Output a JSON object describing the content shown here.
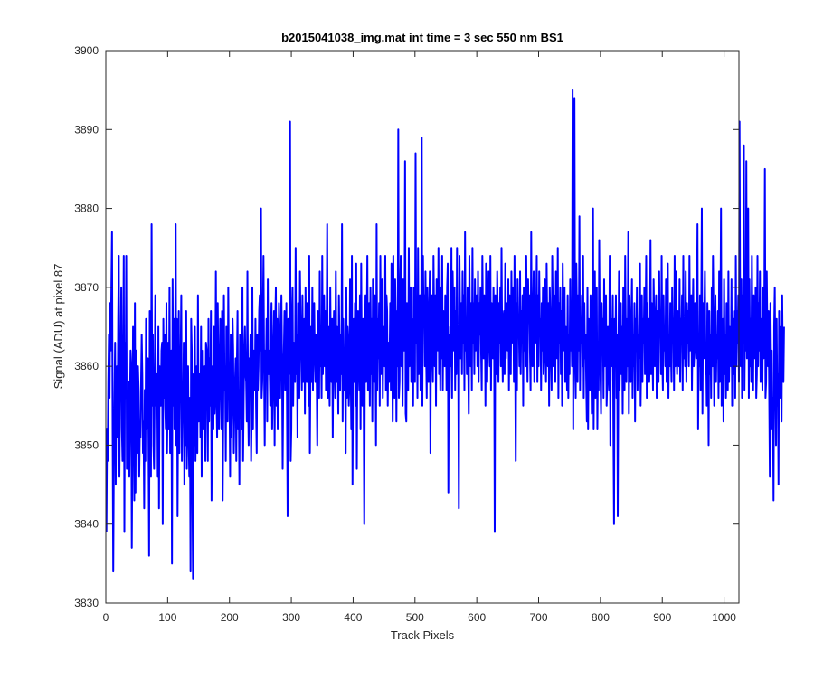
{
  "chart_data": {
    "type": "line",
    "title": "b2015041038_img.mat int time = 3 sec  550 nm BS1",
    "xlabel": "Track Pixels",
    "ylabel": "Signal (ADU) at pixel 87",
    "xlim": [
      0,
      1024
    ],
    "ylim": [
      3830,
      3900
    ],
    "xticks": [
      0,
      100,
      200,
      300,
      400,
      500,
      600,
      700,
      800,
      900,
      1000
    ],
    "yticks": [
      3830,
      3840,
      3850,
      3860,
      3870,
      3880,
      3890,
      3900
    ],
    "grid": false,
    "legend": "none",
    "series_color": "#0000ff",
    "series": [
      {
        "x_start": 1,
        "x_step": 1,
        "values": [
          3839,
          3852,
          3848,
          3858,
          3864,
          3856,
          3868,
          3862,
          3870,
          3877,
          3852,
          3834,
          3849,
          3856,
          3863,
          3845,
          3858,
          3860,
          3851,
          3866,
          3874,
          3846,
          3857,
          3862,
          3870,
          3852,
          3848,
          3860,
          3874,
          3839,
          3863,
          3857,
          3874,
          3847,
          3856,
          3852,
          3858,
          3846,
          3855,
          3862,
          3860,
          3837,
          3851,
          3865,
          3856,
          3843,
          3868,
          3844,
          3862,
          3855,
          3849,
          3860,
          3857,
          3846,
          3852,
          3851,
          3858,
          3864,
          3859,
          3849,
          3853,
          3842,
          3857,
          3848,
          3866,
          3852,
          3855,
          3861,
          3851,
          3836,
          3867,
          3859,
          3846,
          3878,
          3855,
          3864,
          3850,
          3847,
          3857,
          3869,
          3855,
          3858,
          3859,
          3846,
          3865,
          3842,
          3860,
          3858,
          3855,
          3862,
          3863,
          3840,
          3866,
          3856,
          3864,
          3855,
          3852,
          3868,
          3849,
          3856,
          3863,
          3852,
          3870,
          3849,
          3859,
          3862,
          3835,
          3871,
          3855,
          3866,
          3852,
          3859,
          3878,
          3850,
          3866,
          3841,
          3856,
          3867,
          3849,
          3858,
          3861,
          3869,
          3848,
          3856,
          3854,
          3863,
          3845,
          3857,
          3850,
          3867,
          3847,
          3855,
          3860,
          3851,
          3846,
          3856,
          3834,
          3866,
          3862,
          3845,
          3833,
          3859,
          3850,
          3865,
          3848,
          3855,
          3860,
          3849,
          3869,
          3853,
          3857,
          3859,
          3851,
          3865,
          3846,
          3858,
          3862,
          3852,
          3857,
          3860,
          3848,
          3863,
          3862,
          3858,
          3848,
          3866,
          3853,
          3861,
          3855,
          3867,
          3843,
          3858,
          3860,
          3852,
          3865,
          3854,
          3857,
          3872,
          3856,
          3851,
          3868,
          3860,
          3852,
          3858,
          3866,
          3861,
          3852,
          3867,
          3843,
          3855,
          3869,
          3857,
          3860,
          3848,
          3865,
          3862,
          3853,
          3870,
          3859,
          3857,
          3846,
          3864,
          3851,
          3855,
          3866,
          3862,
          3849,
          3855,
          3858,
          3861,
          3848,
          3860,
          3867,
          3852,
          3857,
          3845,
          3864,
          3860,
          3854,
          3852,
          3870,
          3848,
          3856,
          3862,
          3865,
          3859,
          3858,
          3853,
          3872,
          3856,
          3850,
          3861,
          3858,
          3864,
          3848,
          3855,
          3870,
          3852,
          3862,
          3859,
          3857,
          3866,
          3855,
          3849,
          3864,
          3857,
          3860,
          3867,
          3869,
          3862,
          3880,
          3856,
          3858,
          3866,
          3874,
          3860,
          3850,
          3862,
          3859,
          3866,
          3853,
          3871,
          3859,
          3862,
          3860,
          3855,
          3864,
          3868,
          3852,
          3857,
          3863,
          3867,
          3850,
          3865,
          3870,
          3855,
          3866,
          3852,
          3857,
          3868,
          3860,
          3856,
          3864,
          3869,
          3861,
          3847,
          3858,
          3862,
          3867,
          3857,
          3860,
          3868,
          3855,
          3841,
          3866,
          3859,
          3861,
          3891,
          3848,
          3852,
          3866,
          3870,
          3855,
          3863,
          3862,
          3858,
          3875,
          3859,
          3864,
          3851,
          3868,
          3860,
          3856,
          3872,
          3865,
          3862,
          3857,
          3869,
          3858,
          3861,
          3866,
          3854,
          3870,
          3862,
          3858,
          3868,
          3861,
          3855,
          3874,
          3849,
          3860,
          3865,
          3858,
          3870,
          3857,
          3866,
          3868,
          3861,
          3858,
          3864,
          3859,
          3850,
          3867,
          3862,
          3856,
          3872,
          3860,
          3865,
          3856,
          3874,
          3859,
          3863,
          3869,
          3860,
          3867,
          3857,
          3862,
          3878,
          3856,
          3865,
          3860,
          3855,
          3870,
          3861,
          3858,
          3866,
          3851,
          3863,
          3867,
          3860,
          3856,
          3872,
          3858,
          3865,
          3861,
          3854,
          3869,
          3862,
          3857,
          3864,
          3859,
          3878,
          3853,
          3866,
          3861,
          3857,
          3860,
          3849,
          3870,
          3856,
          3865,
          3863,
          3855,
          3858,
          3871,
          3860,
          3852,
          3874,
          3845,
          3861,
          3866,
          3858,
          3868,
          3855,
          3873,
          3847,
          3862,
          3867,
          3860,
          3857,
          3869,
          3852,
          3873,
          3861,
          3855,
          3866,
          3857,
          3840,
          3861,
          3869,
          3858,
          3864,
          3874,
          3857,
          3862,
          3868,
          3855,
          3870,
          3859,
          3866,
          3853,
          3871,
          3860,
          3858,
          3869,
          3864,
          3850,
          3878,
          3857,
          3866,
          3861,
          3868,
          3855,
          3874,
          3859,
          3863,
          3871,
          3856,
          3865,
          3862,
          3860,
          3874,
          3857,
          3869,
          3867,
          3855,
          3863,
          3858,
          3861,
          3868,
          3857,
          3873,
          3864,
          3853,
          3874,
          3860,
          3856,
          3871,
          3865,
          3853,
          3867,
          3860,
          3890,
          3856,
          3858,
          3869,
          3874,
          3860,
          3865,
          3855,
          3871,
          3862,
          3862,
          3886,
          3854,
          3853,
          3868,
          3862,
          3857,
          3875,
          3860,
          3864,
          3870,
          3858,
          3866,
          3860,
          3855,
          3870,
          3864,
          3858,
          3887,
          3863,
          3868,
          3856,
          3875,
          3859,
          3865,
          3869,
          3857,
          3862,
          3889,
          3855,
          3874,
          3865,
          3869,
          3860,
          3872,
          3862,
          3856,
          3870,
          3864,
          3858,
          3867,
          3872,
          3849,
          3866,
          3869,
          3862,
          3858,
          3874,
          3866,
          3860,
          3869,
          3855,
          3871,
          3863,
          3862,
          3875,
          3859,
          3866,
          3857,
          3870,
          3861,
          3874,
          3857,
          3867,
          3863,
          3860,
          3869,
          3866,
          3857,
          3870,
          3873,
          3844,
          3864,
          3856,
          3865,
          3860,
          3875,
          3856,
          3872,
          3866,
          3862,
          3870,
          3857,
          3867,
          3859,
          3875,
          3863,
          3860,
          3842,
          3874,
          3866,
          3861,
          3868,
          3859,
          3872,
          3863,
          3869,
          3857,
          3877,
          3862,
          3866,
          3859,
          3870,
          3861,
          3854,
          3874,
          3865,
          3860,
          3868,
          3857,
          3875,
          3863,
          3868,
          3859,
          3871,
          3862,
          3866,
          3869,
          3860,
          3872,
          3858,
          3868,
          3864,
          3870,
          3862,
          3857,
          3874,
          3866,
          3861,
          3869,
          3868,
          3855,
          3873,
          3860,
          3858,
          3866,
          3872,
          3863,
          3860,
          3874,
          3857,
          3868,
          3866,
          3861,
          3870,
          3865,
          3839,
          3869,
          3862,
          3859,
          3872,
          3866,
          3858,
          3868,
          3863,
          3870,
          3860,
          3875,
          3864,
          3858,
          3866,
          3867,
          3859,
          3873,
          3861,
          3868,
          3866,
          3862,
          3871,
          3857,
          3869,
          3865,
          3859,
          3872,
          3863,
          3866,
          3870,
          3858,
          3874,
          3862,
          3848,
          3868,
          3857,
          3871,
          3864,
          3866,
          3860,
          3872,
          3859,
          3867,
          3863,
          3869,
          3855,
          3870,
          3862,
          3866,
          3860,
          3874,
          3865,
          3858,
          3871,
          3866,
          3869,
          3862,
          3857,
          3877,
          3862,
          3860,
          3867,
          3872,
          3858,
          3869,
          3863,
          3866,
          3874,
          3858,
          3869,
          3860,
          3872,
          3864,
          3866,
          3857,
          3868,
          3862,
          3870,
          3859,
          3865,
          3871,
          3861,
          3858,
          3873,
          3865,
          3860,
          3868,
          3855,
          3870,
          3866,
          3861,
          3857,
          3874,
          3867,
          3860,
          3869,
          3865,
          3858,
          3872,
          3864,
          3861,
          3875,
          3856,
          3868,
          3863,
          3870,
          3859,
          3867,
          3855,
          3873,
          3862,
          3866,
          3870,
          3858,
          3865,
          3862,
          3857,
          3869,
          3856,
          3864,
          3859,
          3871,
          3862,
          3866,
          3860,
          3895,
          3852,
          3880,
          3894,
          3860,
          3856,
          3873,
          3866,
          3858,
          3869,
          3862,
          3879,
          3857,
          3866,
          3863,
          3869,
          3860,
          3874,
          3856,
          3868,
          3861,
          3864,
          3858,
          3853,
          3870,
          3852,
          3866,
          3860,
          3857,
          3869,
          3861,
          3854,
          3867,
          3880,
          3852,
          3864,
          3872,
          3856,
          3859,
          3870,
          3852,
          3861,
          3857,
          3876,
          3864,
          3859,
          3854,
          3868,
          3862,
          3866,
          3856,
          3871,
          3860,
          3862,
          3869,
          3855,
          3858,
          3865,
          3861,
          3857,
          3874,
          3850,
          3866,
          3860,
          3863,
          3869,
          3852,
          3840,
          3866,
          3861,
          3869,
          3856,
          3864,
          3841,
          3860,
          3872,
          3857,
          3863,
          3868,
          3859,
          3865,
          3854,
          3870,
          3861,
          3857,
          3874,
          3864,
          3858,
          3866,
          3860,
          3877,
          3854,
          3869,
          3862,
          3858,
          3866,
          3871,
          3856,
          3864,
          3860,
          3868,
          3853,
          3866,
          3862,
          3870,
          3857,
          3864,
          3861,
          3867,
          3873,
          3855,
          3862,
          3869,
          3858,
          3866,
          3863,
          3870,
          3859,
          3865,
          3874,
          3856,
          3868,
          3861,
          3866,
          3858,
          3863,
          3876,
          3859,
          3868,
          3862,
          3857,
          3871,
          3866,
          3860,
          3864,
          3869,
          3856,
          3867,
          3862,
          3858,
          3872,
          3864,
          3866,
          3859,
          3874,
          3861,
          3857,
          3869,
          3862,
          3865,
          3860,
          3871,
          3858,
          3867,
          3873,
          3856,
          3864,
          3860,
          3868,
          3862,
          3858,
          3870,
          3863,
          3866,
          3857,
          3874,
          3860,
          3872,
          3865,
          3859,
          3867,
          3862,
          3860,
          3871,
          3858,
          3866,
          3863,
          3869,
          3857,
          3874,
          3861,
          3866,
          3860,
          3872,
          3858,
          3868,
          3863,
          3867,
          3860,
          3874,
          3862,
          3866,
          3869,
          3857,
          3865,
          3871,
          3860,
          3862,
          3868,
          3864,
          3861,
          3867,
          3878,
          3852,
          3864,
          3860,
          3869,
          3857,
          3866,
          3880,
          3854,
          3868,
          3861,
          3865,
          3872,
          3859,
          3862,
          3855,
          3868,
          3863,
          3850,
          3867,
          3859,
          3864,
          3856,
          3870,
          3860,
          3874,
          3866,
          3855,
          3862,
          3869,
          3858,
          3864,
          3861,
          3867,
          3856,
          3872,
          3858,
          3864,
          3880,
          3855,
          3862,
          3866,
          3853,
          3871,
          3859,
          3864,
          3856,
          3868,
          3861,
          3857,
          3872,
          3858,
          3865,
          3862,
          3860,
          3871,
          3855,
          3866,
          3859,
          3867,
          3862,
          3856,
          3874,
          3860,
          3867,
          3863,
          3869,
          3858,
          3891,
          3866,
          3860,
          3871,
          3856,
          3869,
          3863,
          3888,
          3857,
          3867,
          3862,
          3886,
          3861,
          3868,
          3880,
          3856,
          3871,
          3860,
          3866,
          3858,
          3874,
          3862,
          3857,
          3869,
          3864,
          3861,
          3870,
          3856,
          3859,
          3874,
          3860,
          3868,
          3862,
          3872,
          3858,
          3866,
          3863,
          3857,
          3870,
          3861,
          3866,
          3885,
          3856,
          3858,
          3872,
          3864,
          3860,
          3867,
          3856,
          3846,
          3868,
          3860,
          3862,
          3852,
          3856,
          3843,
          3865,
          3870,
          3858,
          3850,
          3866,
          3855,
          3859,
          3845,
          3867,
          3856,
          3862,
          3865,
          3853,
          3869,
          3860,
          3858,
          3865
        ]
      }
    ]
  }
}
